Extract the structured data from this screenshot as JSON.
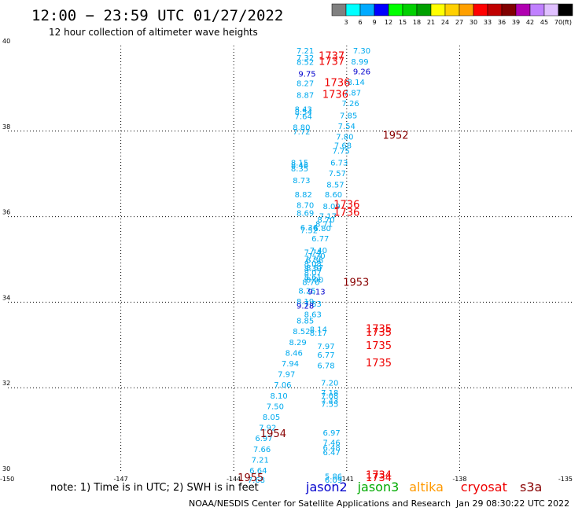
{
  "header": {
    "title": "12:00 − 23:59 UTC 01/27/2022",
    "subtitle": "12 hour collection of altimeter wave heights"
  },
  "colorbar": {
    "colors": [
      "#808080",
      "#00ffff",
      "#00aaff",
      "#0000ff",
      "#00ff00",
      "#00d000",
      "#00a000",
      "#ffff00",
      "#ffd000",
      "#ffa000",
      "#ff0000",
      "#c00000",
      "#800000",
      "#b000b0",
      "#c080ff",
      "#e0c0ff",
      "#000000"
    ],
    "labels": [
      "3",
      "6",
      "9",
      "12",
      "15",
      "18",
      "21",
      "24",
      "27",
      "30",
      "33",
      "36",
      "39",
      "42",
      "45",
      "70"
    ],
    "unit": "(ft)"
  },
  "chart_data": {
    "type": "scatter",
    "title": "12:00 − 23:59 UTC 01/27/2022",
    "subtitle": "12 hour collection of altimeter wave heights",
    "xlim": [
      -150,
      -135
    ],
    "ylim": [
      30,
      40
    ],
    "x_ticks": [
      "-150",
      "-147",
      "-144",
      "-141",
      "-138",
      "-135"
    ],
    "y_ticks": [
      "30",
      "32",
      "34",
      "36",
      "38",
      "40"
    ],
    "grid": true,
    "series": [
      {
        "name": "cryosat",
        "color": "#00aaee",
        "points": [
          {
            "x": -142.1,
            "y": 39.82,
            "v": "7.21"
          },
          {
            "x": -142.1,
            "y": 39.65,
            "v": "7.32"
          },
          {
            "x": -142.1,
            "y": 39.55,
            "v": "8.52"
          },
          {
            "x": -142.1,
            "y": 39.05,
            "v": "8.27"
          },
          {
            "x": -142.1,
            "y": 38.78,
            "v": "8.87"
          },
          {
            "x": -142.15,
            "y": 38.45,
            "v": "8.43"
          },
          {
            "x": -142.15,
            "y": 38.38,
            "v": "8.54"
          },
          {
            "x": -142.15,
            "y": 38.28,
            "v": "7.64"
          },
          {
            "x": -142.2,
            "y": 38.02,
            "v": "8.80"
          },
          {
            "x": -142.2,
            "y": 37.92,
            "v": "7.72"
          },
          {
            "x": -142.25,
            "y": 37.2,
            "v": "8.15"
          },
          {
            "x": -142.25,
            "y": 37.14,
            "v": "8.46"
          },
          {
            "x": -142.25,
            "y": 37.06,
            "v": "8.35"
          },
          {
            "x": -142.2,
            "y": 36.78,
            "v": "8.73"
          },
          {
            "x": -142.15,
            "y": 36.45,
            "v": "8.82"
          },
          {
            "x": -142.1,
            "y": 36.2,
            "v": "8.70"
          },
          {
            "x": -142.1,
            "y": 36.02,
            "v": "8.69"
          },
          {
            "x": -142.0,
            "y": 35.68,
            "v": "6.36"
          },
          {
            "x": -142.0,
            "y": 35.62,
            "v": "7.52"
          },
          {
            "x": -141.9,
            "y": 35.1,
            "v": "7.74"
          },
          {
            "x": -141.9,
            "y": 34.95,
            "v": "7.77"
          },
          {
            "x": -141.9,
            "y": 34.83,
            "v": "8.08"
          },
          {
            "x": -141.9,
            "y": 34.72,
            "v": "8.39"
          },
          {
            "x": -141.9,
            "y": 34.62,
            "v": "8.07"
          },
          {
            "x": -141.9,
            "y": 34.52,
            "v": "8.61"
          },
          {
            "x": -141.95,
            "y": 34.4,
            "v": "8.70"
          },
          {
            "x": -142.05,
            "y": 34.2,
            "v": "8.25"
          },
          {
            "x": -142.1,
            "y": 33.95,
            "v": "8.19"
          },
          {
            "x": -142.1,
            "y": 33.5,
            "v": "8.85"
          },
          {
            "x": -142.2,
            "y": 33.25,
            "v": "8.52"
          },
          {
            "x": -142.3,
            "y": 33.0,
            "v": "8.29"
          },
          {
            "x": -142.4,
            "y": 32.75,
            "v": "8.46"
          },
          {
            "x": -142.5,
            "y": 32.5,
            "v": "7.94"
          },
          {
            "x": -142.6,
            "y": 32.25,
            "v": "7.97"
          },
          {
            "x": -142.7,
            "y": 32.0,
            "v": "7.06"
          },
          {
            "x": -142.8,
            "y": 31.75,
            "v": "8.10"
          },
          {
            "x": -142.9,
            "y": 31.5,
            "v": "7.50"
          },
          {
            "x": -143.0,
            "y": 31.25,
            "v": "8.05"
          },
          {
            "x": -143.1,
            "y": 31.0,
            "v": "7.92"
          },
          {
            "x": -143.2,
            "y": 30.75,
            "v": "6.97"
          },
          {
            "x": -143.25,
            "y": 30.5,
            "v": "7.66"
          },
          {
            "x": -143.3,
            "y": 30.25,
            "v": "7.21"
          },
          {
            "x": -143.35,
            "y": 30.0,
            "v": "6.64"
          },
          {
            "x": -143.4,
            "y": 29.78,
            "v": "7.68"
          }
        ]
      },
      {
        "name": "cryosat",
        "color": "#00aaee",
        "points": [
          {
            "x": -140.6,
            "y": 39.82,
            "v": "7.30"
          },
          {
            "x": -140.65,
            "y": 39.56,
            "v": "8.99"
          },
          {
            "x": -140.75,
            "y": 39.08,
            "v": "8.14"
          },
          {
            "x": -140.85,
            "y": 38.83,
            "v": "7.87"
          },
          {
            "x": -140.9,
            "y": 38.58,
            "v": "7.26"
          },
          {
            "x": -140.95,
            "y": 38.3,
            "v": "7.85"
          },
          {
            "x": -141.0,
            "y": 38.05,
            "v": "7.54"
          },
          {
            "x": -141.05,
            "y": 37.8,
            "v": "7.80"
          },
          {
            "x": -141.1,
            "y": 37.6,
            "v": "7.68"
          },
          {
            "x": -141.15,
            "y": 37.47,
            "v": "7.75"
          },
          {
            "x": -141.2,
            "y": 37.2,
            "v": "6.73"
          },
          {
            "x": -141.25,
            "y": 36.95,
            "v": "7.57"
          },
          {
            "x": -141.3,
            "y": 36.68,
            "v": "8.57"
          },
          {
            "x": -141.35,
            "y": 36.45,
            "v": "8.60"
          },
          {
            "x": -141.4,
            "y": 36.18,
            "v": "8.09"
          },
          {
            "x": -141.5,
            "y": 35.95,
            "v": "7.17"
          },
          {
            "x": -141.55,
            "y": 35.86,
            "v": "8.70"
          },
          {
            "x": -141.6,
            "y": 35.76,
            "v": "8.71"
          },
          {
            "x": -141.65,
            "y": 35.66,
            "v": "6.80"
          },
          {
            "x": -141.7,
            "y": 35.42,
            "v": "6.77"
          },
          {
            "x": -141.75,
            "y": 35.15,
            "v": "7.40"
          },
          {
            "x": -141.8,
            "y": 35.02,
            "v": "7.70"
          },
          {
            "x": -141.85,
            "y": 34.92,
            "v": "8.38"
          },
          {
            "x": -141.85,
            "y": 34.74,
            "v": "8.57"
          },
          {
            "x": -141.85,
            "y": 34.46,
            "v": "8.00"
          },
          {
            "x": -141.9,
            "y": 33.9,
            "v": "7.83"
          },
          {
            "x": -141.9,
            "y": 33.65,
            "v": "8.63"
          },
          {
            "x": -141.75,
            "y": 33.3,
            "v": "8.14"
          },
          {
            "x": -141.75,
            "y": 33.22,
            "v": "8.17"
          },
          {
            "x": -141.55,
            "y": 32.9,
            "v": "7.97"
          },
          {
            "x": -141.55,
            "y": 32.7,
            "v": "6.77"
          },
          {
            "x": -141.55,
            "y": 32.45,
            "v": "6.78"
          },
          {
            "x": -141.45,
            "y": 32.05,
            "v": "7.20"
          },
          {
            "x": -141.45,
            "y": 31.82,
            "v": "7.18"
          },
          {
            "x": -141.45,
            "y": 31.75,
            "v": "7.08"
          },
          {
            "x": -141.45,
            "y": 31.63,
            "v": "7.43"
          },
          {
            "x": -141.45,
            "y": 31.55,
            "v": "7.55"
          },
          {
            "x": -141.4,
            "y": 30.88,
            "v": "6.97"
          },
          {
            "x": -141.4,
            "y": 30.65,
            "v": "7.46"
          },
          {
            "x": -141.4,
            "y": 30.53,
            "v": "6.48"
          },
          {
            "x": -141.4,
            "y": 30.42,
            "v": "6.47"
          },
          {
            "x": -141.35,
            "y": 29.86,
            "v": "5.86"
          },
          {
            "x": -141.35,
            "y": 29.78,
            "v": "6.09"
          }
        ]
      },
      {
        "name": "jason2",
        "color": "#0000cc",
        "points": [
          {
            "x": -142.05,
            "y": 39.27,
            "v": "9.75"
          },
          {
            "x": -140.6,
            "y": 39.33,
            "v": "9.26"
          },
          {
            "x": -141.8,
            "y": 34.18,
            "v": "9.13"
          },
          {
            "x": -142.1,
            "y": 33.85,
            "v": "9.28"
          }
        ]
      }
    ],
    "time_labels": [
      {
        "x": -141.4,
        "y": 39.68,
        "v": "1737",
        "color": "#ee0000"
      },
      {
        "x": -141.4,
        "y": 39.55,
        "v": "1737",
        "color": "#ee0000"
      },
      {
        "x": -141.25,
        "y": 39.05,
        "v": "1736",
        "color": "#ee0000"
      },
      {
        "x": -141.3,
        "y": 38.78,
        "v": "1736",
        "color": "#ee0000"
      },
      {
        "x": -139.7,
        "y": 37.82,
        "v": "1952",
        "color": "#880000"
      },
      {
        "x": -141.0,
        "y": 36.2,
        "v": "1736",
        "color": "#ee0000"
      },
      {
        "x": -141.0,
        "y": 36.02,
        "v": "1736",
        "color": "#ee0000"
      },
      {
        "x": -140.75,
        "y": 34.38,
        "v": "1953",
        "color": "#880000"
      },
      {
        "x": -140.15,
        "y": 33.3,
        "v": "1735",
        "color": "#ee0000"
      },
      {
        "x": -140.15,
        "y": 33.22,
        "v": "1735",
        "color": "#ee0000"
      },
      {
        "x": -140.15,
        "y": 32.9,
        "v": "1735",
        "color": "#ee0000"
      },
      {
        "x": -140.15,
        "y": 32.5,
        "v": "1735",
        "color": "#ee0000"
      },
      {
        "x": -142.95,
        "y": 30.85,
        "v": "1954",
        "color": "#880000"
      },
      {
        "x": -143.55,
        "y": 29.82,
        "v": "1955",
        "color": "#880000"
      },
      {
        "x": -140.15,
        "y": 29.88,
        "v": "1734",
        "color": "#ee0000"
      },
      {
        "x": -140.15,
        "y": 29.82,
        "v": "1734",
        "color": "#ee0000"
      }
    ]
  },
  "footer": {
    "note": "note:  1) Time is in UTC; 2) SWH is in feet",
    "missions": [
      {
        "label": "jason2",
        "color": "#0000cc"
      },
      {
        "label": "jason3",
        "color": "#00aa00"
      },
      {
        "label": "altika",
        "color": "#ff9900"
      },
      {
        "label": "cryosat",
        "color": "#ee0000"
      },
      {
        "label": "s3a",
        "color": "#880000"
      }
    ],
    "credit": "NOAA/NESDIS Center for Satellite Applications and Research",
    "timestamp": "Jan 29 08:30:22 UTC 2022"
  }
}
